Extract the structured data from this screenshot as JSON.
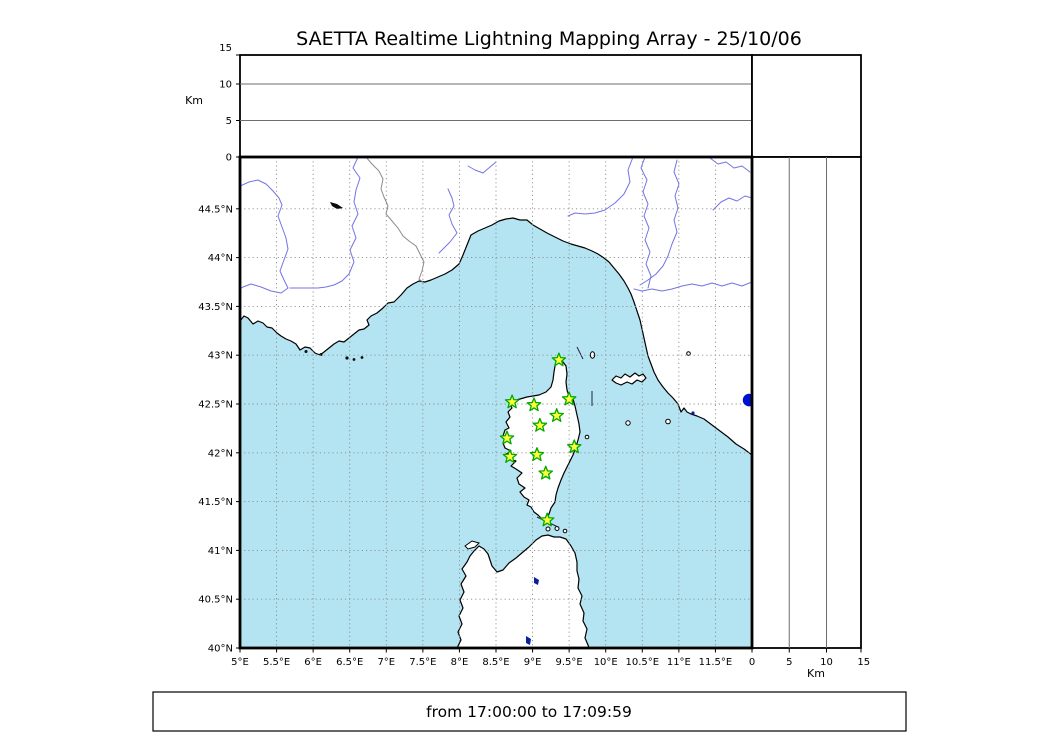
{
  "title": "SAETTA Realtime Lightning Mapping Array - 25/10/06",
  "footer": {
    "text": "from 17:00:00 to 17:09:59"
  },
  "axes": {
    "altitude_left_label": "Km",
    "altitude_left_ticks": [
      "0",
      "5",
      "10",
      "15"
    ],
    "altitude_bottom_label": "Km",
    "altitude_bottom_ticks": [
      "0",
      "5",
      "10",
      "15"
    ],
    "longitude_ticks": [
      "5°E",
      "5.5°E",
      "6°E",
      "6.5°E",
      "7°E",
      "7.5°E",
      "8°E",
      "8.5°E",
      "9°E",
      "9.5°E",
      "10°E",
      "10.5°E",
      "11°E",
      "11.5°E"
    ],
    "latitude_ticks": [
      "44.5°N",
      "44°N",
      "43.5°N",
      "43°N",
      "42.5°N",
      "42°N",
      "41.5°N",
      "41°N",
      "40.5°N",
      "40°N"
    ]
  },
  "colors": {
    "sea": "#b4e4f1",
    "land": "#ffffff",
    "coastline": "#000000",
    "river": "#7474e4",
    "country_border": "#8c8c8c",
    "map_grid": "#8a8a8a",
    "panel_grid": "#6e6e6e",
    "station_fill": "#ffff3c",
    "station_stroke": "#00a800",
    "lake_marker": "#0011cc"
  },
  "chart_data": {
    "type": "scatter",
    "title": "SAETTA Realtime Lightning Mapping Array - 25/10/06",
    "time_window": "from 17:00:00 to 17:09:59",
    "layout": "lightning-mapping-array realtime view: altitude-vs-longitude panel on top, empty stats box top-right, lon-lat map in center, altitude-vs-latitude panel on right, time-window label below",
    "panels": {
      "top": {
        "name": "altitude-vs-longitude",
        "ylabel": "Km",
        "yticks_km": [
          0,
          5,
          10,
          15
        ],
        "grid_km": [
          5,
          10
        ],
        "points": []
      },
      "top_right": {
        "name": "stats-box",
        "content": "empty"
      },
      "main": {
        "name": "map-lon-lat",
        "lon_ticks": [
          5,
          5.5,
          6,
          6.5,
          7,
          7.5,
          8,
          8.5,
          9,
          9.5,
          10,
          10.5,
          11,
          11.5
        ],
        "lat_ticks": [
          44.5,
          44,
          43.5,
          43,
          42.5,
          42,
          41.5,
          41,
          40.5,
          40
        ],
        "lon_range": [
          5,
          12
        ],
        "lat_range": [
          40,
          45.03
        ],
        "grid": "dotted 0.5 degree"
      },
      "right": {
        "name": "altitude-vs-latitude",
        "xlabel": "Km",
        "xticks_km": [
          0,
          5,
          10,
          15
        ],
        "grid_km": [
          5,
          10
        ],
        "points": []
      }
    },
    "stations": [
      {
        "lon": 9.36,
        "lat": 42.95
      },
      {
        "lon": 8.72,
        "lat": 42.52
      },
      {
        "lon": 9.02,
        "lat": 42.49
      },
      {
        "lon": 9.5,
        "lat": 42.55
      },
      {
        "lon": 9.33,
        "lat": 42.38
      },
      {
        "lon": 9.1,
        "lat": 42.28
      },
      {
        "lon": 8.65,
        "lat": 42.15
      },
      {
        "lon": 9.57,
        "lat": 42.06
      },
      {
        "lon": 8.69,
        "lat": 41.96
      },
      {
        "lon": 9.06,
        "lat": 41.98
      },
      {
        "lon": 9.18,
        "lat": 41.79
      },
      {
        "lon": 9.2,
        "lat": 41.31
      }
    ],
    "lightning_sources": [],
    "map_features": {
      "lake_marker": {
        "lon": 11.96,
        "lat": 42.54
      }
    }
  }
}
